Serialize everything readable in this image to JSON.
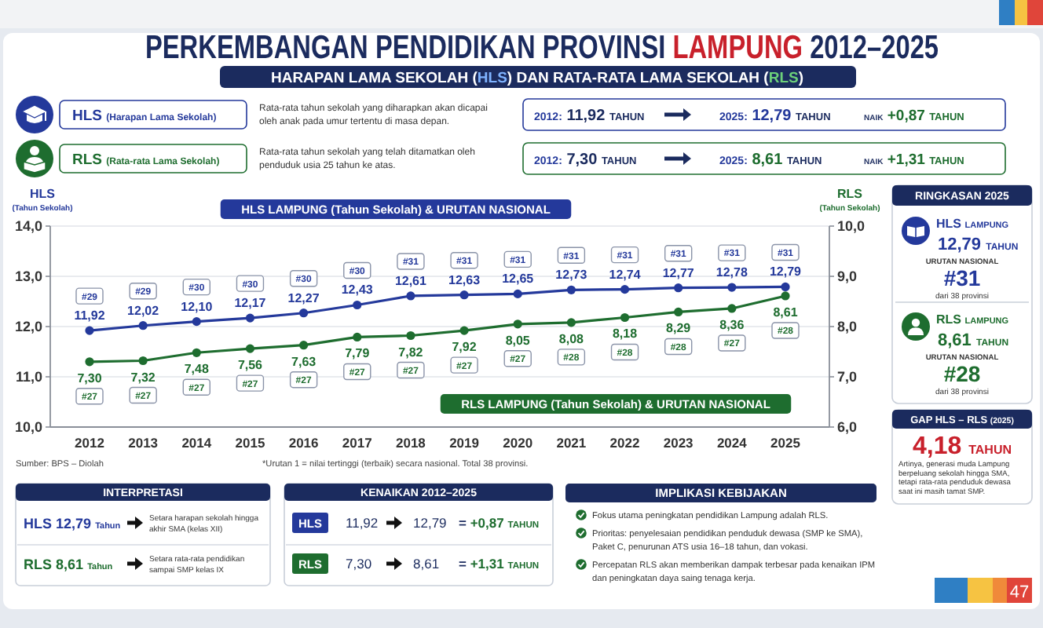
{
  "chart_data": [
    {
      "type": "other",
      "title": "PERKEMBANGAN PENDIDIKAN PROVINSI LAMPUNG 2012–2025",
      "subtitle": "HARAPAN LAMA SEKOLAH (HLS) DAN RATA-RATA LAMA SEKOLAH (RLS)",
      "annotations": [
        "HLS (Harapan Lama Sekolah)",
        "Rata-rata tahun sekolah yang diharapkan akan dicapai oleh anak pada umur tertentu di masa depan.",
        "2012: 11,92 TAHUN",
        "2025: 12,79 TAHUN",
        "NAIK +0,87 TAHUN",
        "RLS (Rata-rata Lama Sekolah)",
        "Rata-rata tahun sekolah yang telah ditamatkan oleh penduduk usia 25 tahun ke atas.",
        "2012: 7,30 TAHUN",
        "2025: 8,61 TAHUN",
        "NAIK +1,31 TAHUN"
      ]
    },
    {
      "type": "line",
      "categories": [
        "2012",
        "2013",
        "2014",
        "2015",
        "2016",
        "2017",
        "2018",
        "2019",
        "2020",
        "2021",
        "2022",
        "2023",
        "2024",
        "2025"
      ],
      "series": [
        {
          "name": "HLS LAMPUNG (Tahun Sekolah) & URUTAN NASIONAL",
          "color": "#24399b",
          "values": [
            11.92,
            12.02,
            12.1,
            12.17,
            12.27,
            12.43,
            12.61,
            12.63,
            12.65,
            12.73,
            12.74,
            12.77,
            12.78,
            12.79
          ],
          "value_labels": [
            "11,92",
            "12,02",
            "12,10",
            "12,17",
            "12,27",
            "12,43",
            "12,61",
            "12,63",
            "12,65",
            "12,73",
            "12,74",
            "12,77",
            "12,78",
            "12,79"
          ]
        },
        {
          "name": "RLS LAMPUNG (Tahun Sekolah) & URUTAN NASIONAL",
          "color": "#1e6d2f",
          "axis": "y2",
          "values": [
            7.3,
            7.32,
            7.48,
            7.56,
            7.63,
            7.79,
            7.82,
            7.92,
            8.05,
            8.08,
            8.18,
            8.29,
            8.36,
            8.61
          ],
          "value_labels": [
            "7,30",
            "7,32",
            "7,48",
            "7,56",
            "7,63",
            "7,79",
            "7,82",
            "7,92",
            "8,05",
            "8,08",
            "8,18",
            "8,29",
            "8,36",
            "8,61"
          ]
        }
      ],
      "ylabel": "HLS",
      "y2label": "RLS",
      "ylim": [
        10,
        14
      ],
      "yticks": [
        {
          "value": 10,
          "label": "10,0"
        },
        {
          "value": 11,
          "label": "11,0"
        },
        {
          "value": 12,
          "label": "12,0"
        },
        {
          "value": 13,
          "label": "13,0"
        },
        {
          "value": 14,
          "label": "14,0"
        }
      ],
      "y2lim": [
        6,
        10
      ],
      "y2ticks": [
        {
          "value": 6,
          "label": "6,0"
        },
        {
          "value": 7,
          "label": "7,0"
        },
        {
          "value": 8,
          "label": "8,0"
        },
        {
          "value": 9,
          "label": "9,0"
        },
        {
          "value": 10,
          "label": "10,0"
        }
      ],
      "grid": "y",
      "marker": "circle",
      "annotations": [
        {
          "text": "#29",
          "x": "2012",
          "y": 11.92
        },
        {
          "text": "#29",
          "x": "2013",
          "y": 12.02
        },
        {
          "text": "#30",
          "x": "2014",
          "y": 12.1
        },
        {
          "text": "#30",
          "x": "2015",
          "y": 12.17
        },
        {
          "text": "#30",
          "x": "2016",
          "y": 12.27
        },
        {
          "text": "#30",
          "x": "2017",
          "y": 12.43
        },
        {
          "text": "#31",
          "x": "2018",
          "y": 12.61
        },
        {
          "text": "#31",
          "x": "2019",
          "y": 12.63
        },
        {
          "text": "#31",
          "x": "2020",
          "y": 12.65
        },
        {
          "text": "#31",
          "x": "2021",
          "y": 12.73
        },
        {
          "text": "#31",
          "x": "2022",
          "y": 12.74
        },
        {
          "text": "#31",
          "x": "2023",
          "y": 12.77
        },
        {
          "text": "#31",
          "x": "2024",
          "y": 12.78
        },
        {
          "text": "#31",
          "x": "2025",
          "y": 12.79
        },
        {
          "text": "#27",
          "x": "2012"
        },
        {
          "text": "#27",
          "x": "2013"
        },
        {
          "text": "#27",
          "x": "2014"
        },
        {
          "text": "#27",
          "x": "2015"
        },
        {
          "text": "#27",
          "x": "2016"
        },
        {
          "text": "#27",
          "x": "2017"
        },
        {
          "text": "#27",
          "x": "2018"
        },
        {
          "text": "#27",
          "x": "2019"
        },
        {
          "text": "#27",
          "x": "2020"
        },
        {
          "text": "#28",
          "x": "2021"
        },
        {
          "text": "#28",
          "x": "2022"
        },
        {
          "text": "#28",
          "x": "2023"
        },
        {
          "text": "#27",
          "x": "2024"
        },
        {
          "text": "#28",
          "x": "2025"
        },
        "(Tahun Sekolah)",
        "(Tahun Sekolah)",
        "Sumber: BPS – Diolah",
        "*Urutan 1 = nilai tertinggi (terbaik) secara nasional. Total 38 provinsi."
      ]
    },
    {
      "type": "other",
      "title": "RINGKASAN 2025",
      "annotations": [
        "HLS LAMPUNG",
        "12,79 TAHUN",
        "URUTAN NASIONAL",
        "#31",
        "dari 38 provinsi",
        "RLS LAMPUNG",
        "8,61 TAHUN",
        "URUTAN NASIONAL",
        "#28",
        "dari 38 provinsi"
      ]
    },
    {
      "type": "other",
      "title": "GAP HLS – RLS (2025)",
      "annotations": [
        "4,18 TAHUN",
        "Artinya, generasi muda Lampung berpeluang sekolah hingga SMA, tetapi rata-rata penduduk dewasa saat ini masih tamat SMP."
      ]
    },
    {
      "type": "other",
      "title": "INTERPRETASI",
      "annotations": [
        "HLS 12,79 Tahun",
        "Setara harapan sekolah hingga akhir SMA (kelas XII)",
        "RLS 8,61 Tahun",
        "Setara rata-rata pendidikan sampai SMP kelas IX"
      ]
    },
    {
      "type": "other",
      "title": "KENAIKAN 2012–2025",
      "annotations": [
        "HLS",
        "11,92",
        "12,79",
        "= +0,87 TAHUN",
        "RLS",
        "7,30",
        "8,61",
        "= +1,31 TAHUN"
      ]
    },
    {
      "type": "other",
      "title": "IMPLIKASI KEBIJAKAN",
      "annotations": [
        "Fokus utama peningkatan pendidikan Lampung adalah RLS.",
        "Prioritas: penyelesaian pendidikan penduduk dewasa (SMP ke SMA), Paket C, penurunan ATS usia 16–18 tahun, dan vokasi.",
        "Percepatan RLS akan memberikan dampak terbesar pada kenaikan IPM dan peningkatan daya saing tenaga kerja."
      ]
    },
    {
      "type": "other",
      "annotations": [
        "47"
      ]
    }
  ]
}
